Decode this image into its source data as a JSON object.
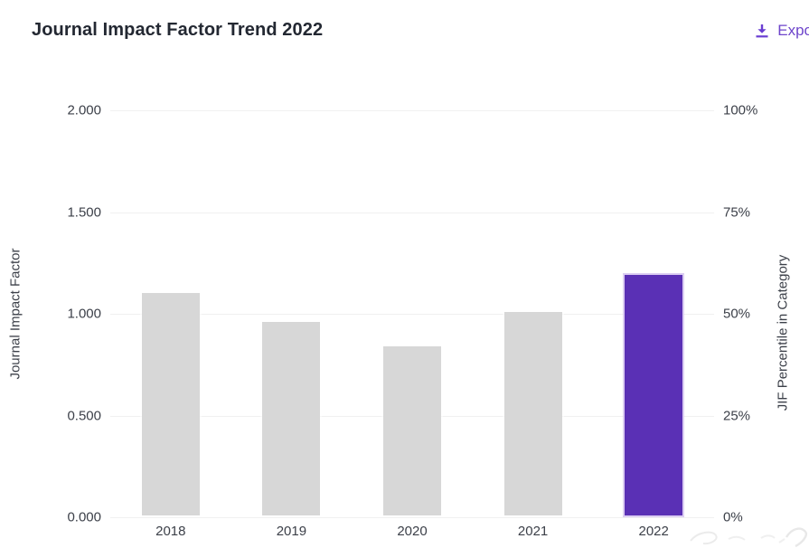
{
  "header": {
    "title": "Journal Impact Factor Trend 2022",
    "export_label": "Expo"
  },
  "chart_data": {
    "type": "bar",
    "title": "Journal Impact Factor Trend 2022",
    "categories": [
      "2018",
      "2019",
      "2020",
      "2021",
      "2022"
    ],
    "series": [
      {
        "name": "Journal Impact Factor",
        "values": [
          1.11,
          0.97,
          0.85,
          1.02,
          1.2
        ]
      }
    ],
    "highlight_category": "2022",
    "left_axis": {
      "label": "Journal Impact Factor",
      "ticks": [
        "2.000",
        "1.500",
        "1.000",
        "0.500",
        "0.000"
      ],
      "min": 0,
      "max": 2
    },
    "right_axis": {
      "label": "JIF Percentile in Category",
      "ticks": [
        "100%",
        "75%",
        "50%",
        "25%",
        "0%"
      ],
      "min": 0,
      "max": 100
    },
    "grid": true,
    "legend": false,
    "colors": {
      "bar_default": "#d7d7d7",
      "bar_highlight": "#5a30b5",
      "gridline": "#f0f0f0",
      "accent": "#6e45cb"
    }
  }
}
